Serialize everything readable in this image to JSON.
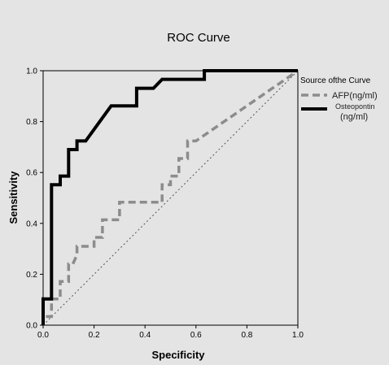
{
  "chart_data": {
    "type": "line",
    "title": "ROC Curve",
    "xlabel": "Specificity",
    "ylabel": "Sensitivity",
    "xlim": [
      0.0,
      1.0
    ],
    "ylim": [
      0.0,
      1.0
    ],
    "x_ticks": [
      "0.0",
      "0.2",
      "0.4",
      "0.6",
      "0.8",
      "1.0"
    ],
    "y_ticks": [
      "0.0",
      "0.2",
      "0.4",
      "0.6",
      "0.8",
      "1.0"
    ],
    "grid": false,
    "legend": {
      "title": "Source ofthe Curve",
      "placement": "right"
    },
    "series": [
      {
        "name": "AFP(ng/ml)",
        "style": "dashed",
        "color": "#8c8c8c",
        "x": [
          0.0,
          0.0,
          0.033,
          0.033,
          0.067,
          0.067,
          0.1,
          0.1,
          0.117,
          0.133,
          0.133,
          0.2,
          0.2,
          0.233,
          0.233,
          0.3,
          0.3,
          0.467,
          0.467,
          0.5,
          0.5,
          0.533,
          0.533,
          0.567,
          0.567,
          0.6,
          0.6,
          1.0
        ],
        "y": [
          0.0,
          0.034,
          0.034,
          0.103,
          0.103,
          0.172,
          0.172,
          0.241,
          0.241,
          0.276,
          0.31,
          0.31,
          0.345,
          0.345,
          0.414,
          0.414,
          0.483,
          0.483,
          0.552,
          0.552,
          0.586,
          0.586,
          0.655,
          0.655,
          0.724,
          0.724,
          0.724,
          1.0
        ]
      },
      {
        "name": "Osteopontin (ng/ml)",
        "style": "solid",
        "color": "#000000",
        "x": [
          0.0,
          0.0,
          0.033,
          0.033,
          0.067,
          0.067,
          0.1,
          0.1,
          0.133,
          0.133,
          0.167,
          0.167,
          0.267,
          0.267,
          0.367,
          0.367,
          0.433,
          0.433,
          0.467,
          0.467,
          0.633,
          0.633,
          1.0
        ],
        "y": [
          0.0,
          0.103,
          0.103,
          0.552,
          0.552,
          0.586,
          0.586,
          0.69,
          0.69,
          0.724,
          0.724,
          0.724,
          0.862,
          0.862,
          0.862,
          0.931,
          0.931,
          0.931,
          0.966,
          0.966,
          0.966,
          1.0,
          1.0
        ]
      },
      {
        "name": "Reference Line",
        "style": "dotted",
        "color": "#555555",
        "x": [
          0.0,
          1.0
        ],
        "y": [
          0.0,
          1.0
        ]
      }
    ]
  }
}
